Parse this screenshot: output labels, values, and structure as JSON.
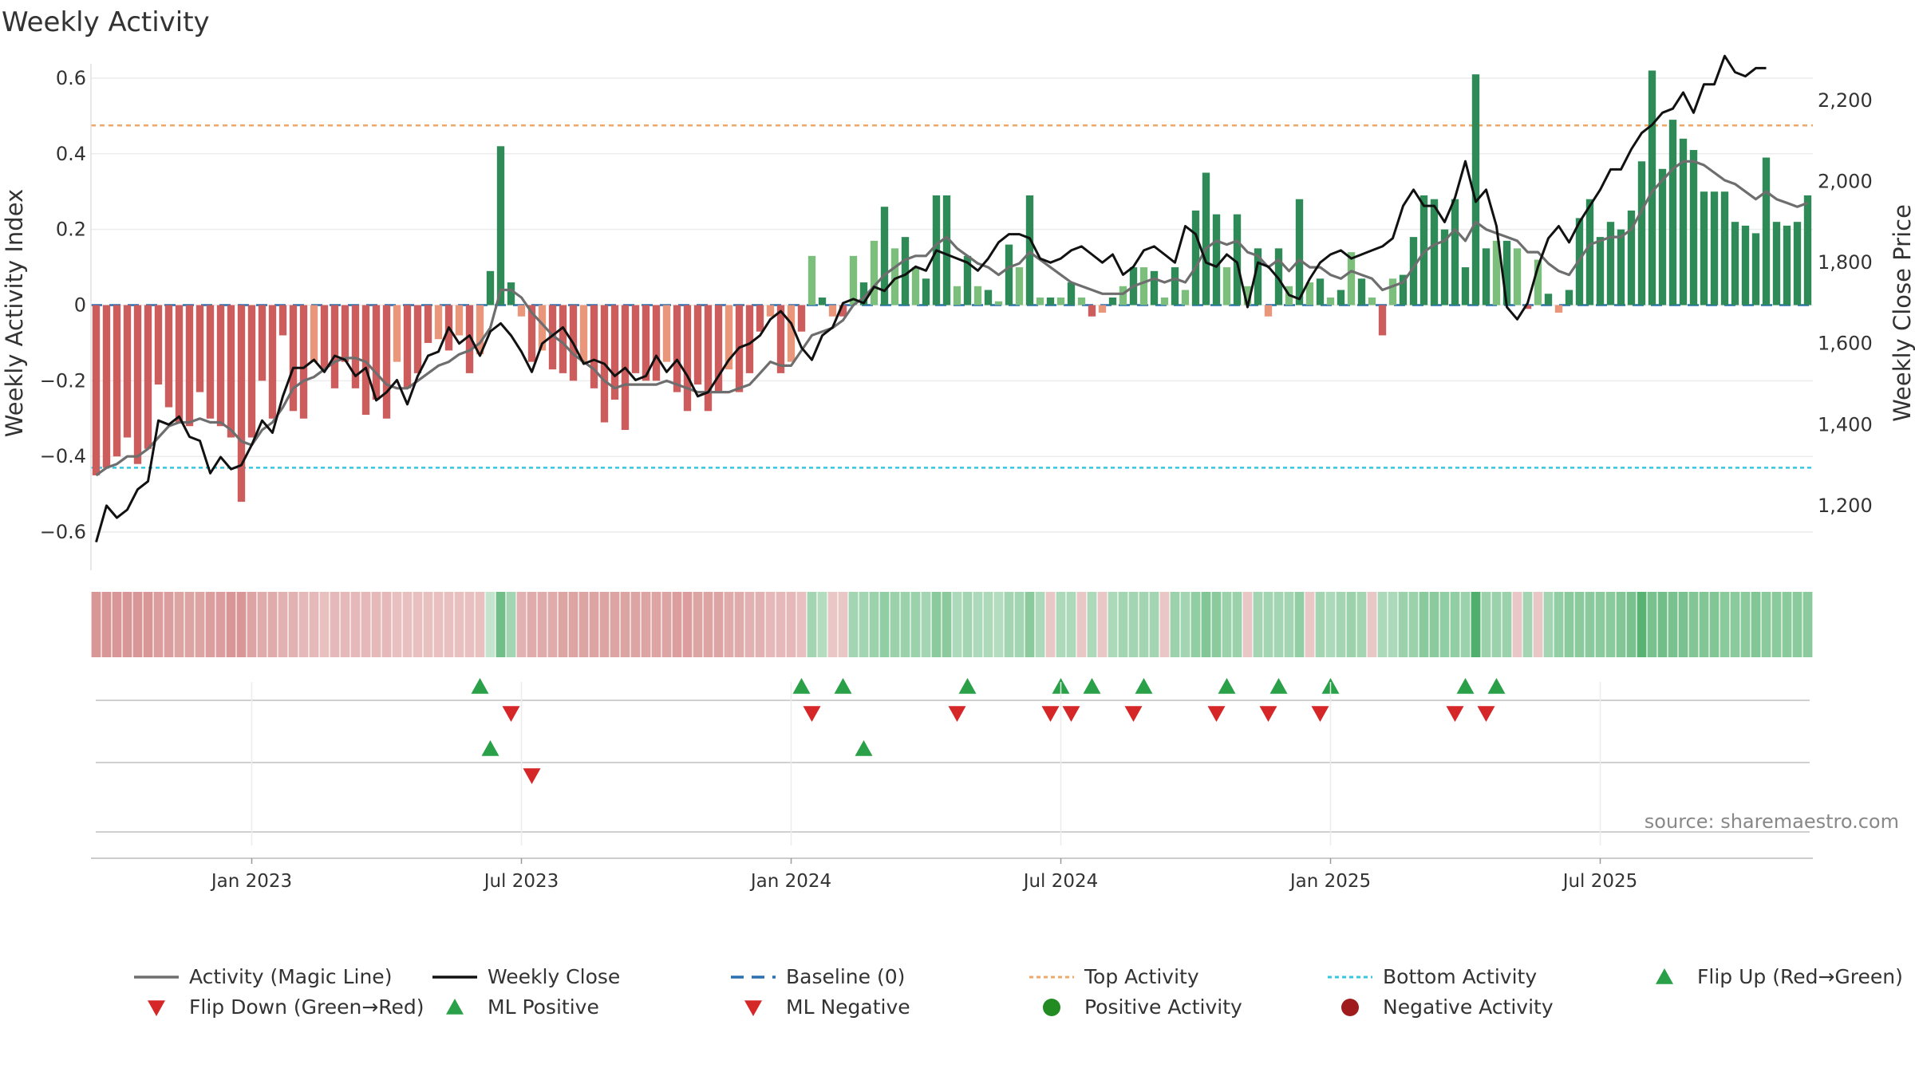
{
  "title": "Weekly Activity",
  "source": "source: sharemaestro.com",
  "colors": {
    "pos_strong": "#2e8b57",
    "pos_weak": "#7cbf7c",
    "neg_strong": "#cd5c5c",
    "neg_weak": "#e9967a",
    "magic": "#6e6e6e",
    "close": "#111111",
    "baseline": "#2a6fb0",
    "top": "#f0a868",
    "bottom": "#33c8e0",
    "up": "#2aa048",
    "down": "#d62728",
    "grid": "#ececec"
  },
  "chart_data": {
    "type": "bar",
    "title": "Weekly Activity",
    "ylabel": "Weekly Activity Index",
    "y2label": "Weekly Close Price",
    "ylim": [
      -0.68,
      0.68
    ],
    "y2lim": [
      1060,
      2330
    ],
    "yticks": [
      {
        "v": 0.6,
        "label": "0.6"
      },
      {
        "v": 0.4,
        "label": "0.4"
      },
      {
        "v": 0.2,
        "label": "0.2"
      },
      {
        "v": 0,
        "label": "0"
      },
      {
        "v": -0.2,
        "label": "−0.2"
      },
      {
        "v": -0.4,
        "label": "−0.4"
      },
      {
        "v": -0.6,
        "label": "−0.6"
      }
    ],
    "y2ticks": [
      {
        "v": 2200,
        "label": "2,200"
      },
      {
        "v": 2000,
        "label": "2,000"
      },
      {
        "v": 1800,
        "label": "1,800"
      },
      {
        "v": 1600,
        "label": "1,600"
      },
      {
        "v": 1400,
        "label": "1,400"
      },
      {
        "v": 1200,
        "label": "1,200"
      }
    ],
    "xticks": [
      {
        "week": 15,
        "label": "Jan 2023"
      },
      {
        "week": 41,
        "label": "Jul 2023"
      },
      {
        "week": 67,
        "label": "Jan 2024"
      },
      {
        "week": 93,
        "label": "Jul 2024"
      },
      {
        "week": 119,
        "label": "Jan 2025"
      },
      {
        "week": 145,
        "label": "Jul 2025"
      }
    ],
    "top_activity": 0.475,
    "bottom_activity": -0.43,
    "activity": [
      -0.45,
      -0.43,
      -0.4,
      -0.35,
      -0.42,
      -0.38,
      -0.21,
      -0.27,
      -0.31,
      -0.32,
      -0.23,
      -0.3,
      -0.32,
      -0.35,
      -0.52,
      -0.35,
      -0.2,
      -0.3,
      -0.08,
      -0.28,
      -0.3,
      -0.15,
      -0.17,
      -0.22,
      -0.15,
      -0.22,
      -0.29,
      -0.25,
      -0.3,
      -0.15,
      -0.22,
      -0.18,
      -0.1,
      -0.09,
      -0.12,
      -0.08,
      -0.18,
      -0.13,
      0.09,
      0.42,
      0.06,
      -0.03,
      -0.15,
      -0.12,
      -0.17,
      -0.18,
      -0.2,
      -0.15,
      -0.22,
      -0.31,
      -0.25,
      -0.33,
      -0.18,
      -0.2,
      -0.2,
      -0.15,
      -0.23,
      -0.28,
      -0.21,
      -0.28,
      -0.23,
      -0.17,
      -0.23,
      -0.18,
      -0.07,
      -0.03,
      -0.18,
      -0.15,
      -0.07,
      0.13,
      0.02,
      -0.03,
      -0.03,
      0.13,
      0.06,
      0.17,
      0.26,
      0.15,
      0.18,
      0.1,
      0.07,
      0.29,
      0.29,
      0.05,
      0.13,
      0.05,
      0.04,
      0.01,
      0.16,
      0.1,
      0.29,
      0.02,
      0.02,
      0.02,
      0.06,
      0.02,
      -0.03,
      -0.02,
      0.02,
      0.05,
      0.1,
      0.1,
      0.09,
      0.02,
      0.1,
      0.04,
      0.25,
      0.35,
      0.24,
      0.1,
      0.24,
      0.05,
      0.15,
      -0.03,
      0.15,
      0.05,
      0.28,
      0.06,
      0.07,
      0.02,
      0.04,
      0.14,
      0.07,
      0.02,
      -0.08,
      0.07,
      0.08,
      0.18,
      0.29,
      0.28,
      0.2,
      0.28,
      0.1,
      0.61,
      0.15,
      0.17,
      0.17,
      0.15,
      -0.01,
      0.12,
      0.03,
      -0.02,
      0.04,
      0.23,
      0.28,
      0.18,
      0.22,
      0.2,
      0.25,
      0.38,
      0.62,
      0.36,
      0.49,
      0.44,
      0.41,
      0.3,
      0.3,
      0.3,
      0.22,
      0.21,
      0.19,
      0.39,
      0.22,
      0.21,
      0.22,
      0.29
    ],
    "magic_line": [
      -0.45,
      -0.43,
      -0.42,
      -0.4,
      -0.4,
      -0.38,
      -0.35,
      -0.32,
      -0.31,
      -0.31,
      -0.3,
      -0.31,
      -0.31,
      -0.33,
      -0.36,
      -0.37,
      -0.33,
      -0.31,
      -0.27,
      -0.22,
      -0.2,
      -0.19,
      -0.17,
      -0.15,
      -0.14,
      -0.14,
      -0.15,
      -0.18,
      -0.21,
      -0.22,
      -0.22,
      -0.2,
      -0.18,
      -0.16,
      -0.15,
      -0.13,
      -0.12,
      -0.1,
      -0.06,
      0.04,
      0.04,
      0.02,
      -0.02,
      -0.05,
      -0.08,
      -0.1,
      -0.13,
      -0.15,
      -0.17,
      -0.2,
      -0.22,
      -0.21,
      -0.21,
      -0.21,
      -0.21,
      -0.2,
      -0.21,
      -0.22,
      -0.23,
      -0.23,
      -0.23,
      -0.23,
      -0.22,
      -0.21,
      -0.18,
      -0.15,
      -0.16,
      -0.16,
      -0.12,
      -0.08,
      -0.07,
      -0.06,
      -0.04,
      0.0,
      0.02,
      0.05,
      0.08,
      0.1,
      0.12,
      0.13,
      0.13,
      0.16,
      0.18,
      0.15,
      0.13,
      0.11,
      0.1,
      0.08,
      0.1,
      0.11,
      0.14,
      0.12,
      0.1,
      0.08,
      0.06,
      0.05,
      0.04,
      0.03,
      0.03,
      0.03,
      0.05,
      0.06,
      0.07,
      0.06,
      0.07,
      0.06,
      0.1,
      0.15,
      0.17,
      0.16,
      0.17,
      0.14,
      0.13,
      0.1,
      0.12,
      0.09,
      0.12,
      0.1,
      0.1,
      0.08,
      0.07,
      0.09,
      0.08,
      0.07,
      0.04,
      0.05,
      0.06,
      0.1,
      0.14,
      0.16,
      0.17,
      0.2,
      0.17,
      0.22,
      0.2,
      0.19,
      0.18,
      0.17,
      0.14,
      0.14,
      0.11,
      0.09,
      0.08,
      0.12,
      0.16,
      0.17,
      0.18,
      0.18,
      0.2,
      0.25,
      0.3,
      0.33,
      0.36,
      0.38,
      0.38,
      0.37,
      0.35,
      0.33,
      0.32,
      0.3,
      0.28,
      0.3,
      0.28,
      0.27,
      0.26,
      0.27
    ],
    "weekly_close": [
      1110,
      1200,
      1170,
      1190,
      1240,
      1260,
      1410,
      1400,
      1420,
      1370,
      1360,
      1280,
      1320,
      1290,
      1300,
      1350,
      1410,
      1380,
      1470,
      1540,
      1540,
      1560,
      1530,
      1570,
      1560,
      1520,
      1540,
      1460,
      1480,
      1510,
      1450,
      1520,
      1570,
      1580,
      1640,
      1600,
      1620,
      1570,
      1630,
      1650,
      1620,
      1580,
      1530,
      1600,
      1620,
      1640,
      1600,
      1550,
      1560,
      1550,
      1520,
      1540,
      1510,
      1520,
      1570,
      1530,
      1560,
      1520,
      1470,
      1480,
      1520,
      1560,
      1590,
      1600,
      1620,
      1660,
      1680,
      1650,
      1590,
      1560,
      1620,
      1640,
      1700,
      1710,
      1700,
      1740,
      1730,
      1760,
      1770,
      1790,
      1780,
      1830,
      1820,
      1810,
      1800,
      1780,
      1810,
      1850,
      1870,
      1870,
      1860,
      1810,
      1800,
      1810,
      1830,
      1840,
      1820,
      1800,
      1820,
      1770,
      1790,
      1830,
      1840,
      1820,
      1800,
      1890,
      1870,
      1800,
      1790,
      1820,
      1800,
      1690,
      1800,
      1790,
      1760,
      1720,
      1710,
      1760,
      1800,
      1820,
      1830,
      1810,
      1820,
      1830,
      1840,
      1860,
      1940,
      1980,
      1940,
      1940,
      1900,
      1960,
      2050,
      1950,
      1980,
      1890,
      1690,
      1660,
      1700,
      1790,
      1860,
      1890,
      1850,
      1900,
      1940,
      1980,
      2030,
      2030,
      2080,
      2120,
      2140,
      2170,
      2180,
      2220,
      2170,
      2240,
      2240,
      2310,
      2270,
      2260,
      2280,
      2280
    ],
    "strip_intensity": [
      -0.5,
      -0.5,
      -0.5,
      -0.5,
      -0.5,
      -0.5,
      -0.45,
      -0.45,
      -0.4,
      -0.4,
      -0.4,
      -0.45,
      -0.45,
      -0.5,
      -0.5,
      -0.4,
      -0.35,
      -0.35,
      -0.3,
      -0.3,
      -0.25,
      -0.25,
      -0.2,
      -0.25,
      -0.25,
      -0.25,
      -0.25,
      -0.25,
      -0.25,
      -0.2,
      -0.2,
      -0.2,
      -0.2,
      -0.2,
      -0.2,
      -0.2,
      -0.2,
      -0.2,
      0.1,
      0.6,
      0.3,
      -0.3,
      -0.35,
      -0.35,
      -0.35,
      -0.4,
      -0.4,
      -0.4,
      -0.4,
      -0.4,
      -0.4,
      -0.4,
      -0.4,
      -0.4,
      -0.4,
      -0.4,
      -0.45,
      -0.45,
      -0.4,
      -0.4,
      -0.4,
      -0.35,
      -0.35,
      -0.3,
      -0.3,
      -0.25,
      -0.25,
      -0.25,
      -0.2,
      0.3,
      0.2,
      -0.15,
      -0.15,
      0.3,
      0.3,
      0.35,
      0.4,
      0.35,
      0.35,
      0.35,
      0.3,
      0.45,
      0.45,
      0.25,
      0.3,
      0.25,
      0.25,
      0.2,
      0.3,
      0.3,
      0.45,
      0.25,
      -0.15,
      0.25,
      0.25,
      -0.15,
      0.25,
      -0.15,
      0.25,
      0.3,
      0.3,
      0.3,
      0.3,
      -0.15,
      0.35,
      0.3,
      0.4,
      0.5,
      0.45,
      0.35,
      0.35,
      -0.15,
      0.3,
      0.3,
      0.3,
      0.3,
      0.4,
      -0.15,
      0.3,
      0.25,
      0.3,
      0.35,
      0.3,
      -0.15,
      0.25,
      0.25,
      0.35,
      0.35,
      0.45,
      0.45,
      0.4,
      0.4,
      0.35,
      0.8,
      0.35,
      0.35,
      0.35,
      -0.15,
      0.3,
      -0.15,
      0.3,
      0.4,
      0.45,
      0.45,
      0.45,
      0.45,
      0.45,
      0.5,
      0.55,
      0.75,
      0.55,
      0.6,
      0.55,
      0.55,
      0.5,
      0.5,
      0.5,
      0.45,
      0.45,
      0.45,
      0.5,
      0.45,
      0.45,
      0.45,
      0.45,
      0.45
    ],
    "flip_up_weeks": [
      37,
      68,
      72,
      84,
      93,
      96,
      101,
      109,
      114,
      119,
      132,
      135
    ],
    "flip_down_weeks": [
      40,
      69,
      83,
      92,
      94,
      100,
      108,
      113,
      118,
      131,
      134
    ],
    "ml_positive_weeks": [
      38,
      74
    ],
    "ml_negative_weeks": [
      42
    ]
  },
  "legend": [
    {
      "key": "magic",
      "label": "Activity (Magic Line)",
      "symbol": "line"
    },
    {
      "key": "close",
      "label": "Weekly Close",
      "symbol": "line"
    },
    {
      "key": "baseline",
      "label": "Baseline (0)",
      "symbol": "dash"
    },
    {
      "key": "top",
      "label": "Top Activity",
      "symbol": "dot"
    },
    {
      "key": "bottom",
      "label": "Bottom Activity",
      "symbol": "dot"
    },
    {
      "key": "up",
      "label": "Flip Up (Red→Green)",
      "symbol": "tri-up"
    },
    {
      "key": "down",
      "label": "Flip Down (Green→Red)",
      "symbol": "tri-down"
    },
    {
      "key": "up",
      "label": "ML Positive",
      "symbol": "tri-up"
    },
    {
      "key": "down",
      "label": "ML Negative",
      "symbol": "tri-down"
    },
    {
      "key": "up",
      "label": "Positive Activity",
      "symbol": "circle"
    },
    {
      "key": "down",
      "label": "Negative Activity",
      "symbol": "circle"
    }
  ]
}
